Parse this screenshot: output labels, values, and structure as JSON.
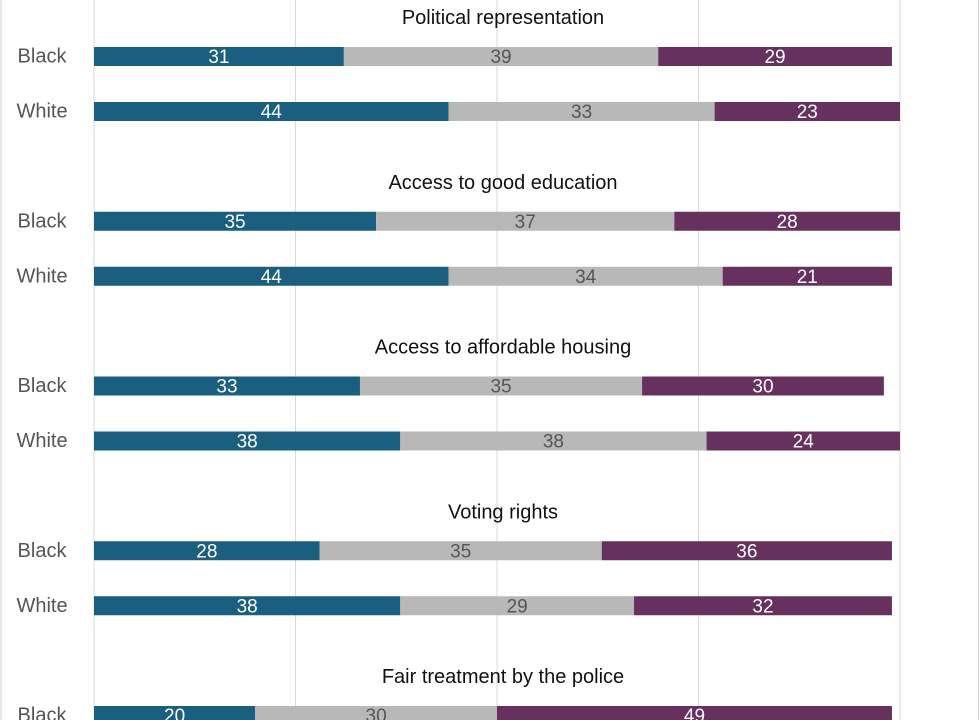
{
  "chart_data": {
    "type": "bar",
    "orientation": "horizontal",
    "stacked": true,
    "xlim": [
      0,
      100
    ],
    "grid": true,
    "colors": [
      "#1a5f80",
      "#b8b8b8",
      "#66305f"
    ],
    "label_colors": [
      "#ffffff",
      "#555555",
      "#ffffff"
    ],
    "groups": [
      {
        "title": "Political representation",
        "rows": [
          {
            "label": "Black",
            "values": [
              31,
              39,
              29
            ]
          },
          {
            "label": "White",
            "values": [
              44,
              33,
              23
            ]
          }
        ]
      },
      {
        "title": "Access to good education",
        "rows": [
          {
            "label": "Black",
            "values": [
              35,
              37,
              28
            ]
          },
          {
            "label": "White",
            "values": [
              44,
              34,
              21
            ]
          }
        ]
      },
      {
        "title": "Access to affordable housing",
        "rows": [
          {
            "label": "Black",
            "values": [
              33,
              35,
              30
            ]
          },
          {
            "label": "White",
            "values": [
              38,
              38,
              24
            ]
          }
        ]
      },
      {
        "title": "Voting rights",
        "rows": [
          {
            "label": "Black",
            "values": [
              28,
              35,
              36
            ]
          },
          {
            "label": "White",
            "values": [
              38,
              29,
              32
            ]
          }
        ]
      },
      {
        "title": "Fair treatment by the police",
        "rows": [
          {
            "label": "Black",
            "values": [
              20,
              30,
              49
            ]
          }
        ]
      }
    ]
  }
}
